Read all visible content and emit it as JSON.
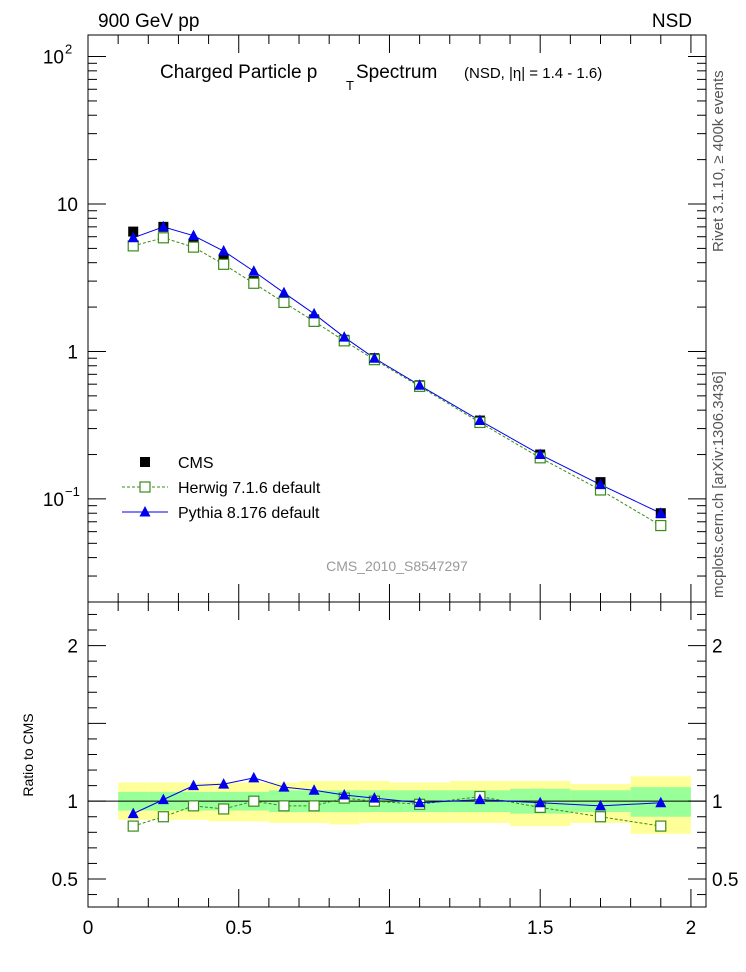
{
  "header": {
    "left_label": "900 GeV pp",
    "right_label": "NSD"
  },
  "side_labels": {
    "rivet": "Rivet 3.1.10, ≥ 400k events",
    "mcplots": "mcplots.cern.ch [arXiv:1306.3436]"
  },
  "colors": {
    "cms": "#000000",
    "herwig": "#3a8a1a",
    "pythia": "#0000ee",
    "band_outer": "#ffff99",
    "band_inner": "#99ff99"
  },
  "chart_data": [
    {
      "type": "line",
      "scale": "log",
      "title_main": "Charged Particle p",
      "title_sub": "T",
      "title_rest": " Spectrum",
      "title_note": "(NSD, |η| = 1.4 - 1.6)",
      "watermark": "CMS_2010_S8547297",
      "xlim": [
        0,
        2.05
      ],
      "ylim": [
        0.02,
        140
      ],
      "y_ticks": [
        {
          "value": 100,
          "label": "10",
          "sup": "2"
        },
        {
          "value": 10,
          "label": "10",
          "sup": ""
        },
        {
          "value": 1,
          "label": "1",
          "sup": ""
        },
        {
          "value": 0.1,
          "label": "10",
          "sup": "−1"
        }
      ],
      "legend": [
        {
          "key": "cms",
          "label": "CMS"
        },
        {
          "key": "herwig",
          "label": "Herwig 7.1.6 default"
        },
        {
          "key": "pythia",
          "label": "Pythia 8.176 default"
        }
      ],
      "x": [
        0.15,
        0.25,
        0.35,
        0.45,
        0.55,
        0.65,
        0.75,
        0.85,
        0.95,
        1.1,
        1.3,
        1.5,
        1.7,
        1.9
      ],
      "series": [
        {
          "name": "CMS",
          "key": "cms",
          "values": [
            6.5,
            7.0,
            5.4,
            4.2,
            3.0,
            2.2,
            1.65,
            1.2,
            0.9,
            0.59,
            0.34,
            0.2,
            0.13,
            0.08
          ]
        },
        {
          "name": "Herwig 7.1.6 default",
          "key": "herwig",
          "values": [
            5.2,
            5.9,
            5.1,
            3.9,
            2.9,
            2.15,
            1.6,
            1.18,
            0.88,
            0.58,
            0.33,
            0.19,
            0.115,
            0.066
          ]
        },
        {
          "name": "Pythia 8.176 default",
          "key": "pythia",
          "values": [
            5.9,
            7.0,
            6.1,
            4.8,
            3.5,
            2.5,
            1.8,
            1.25,
            0.9,
            0.59,
            0.34,
            0.2,
            0.125,
            0.08
          ]
        }
      ]
    },
    {
      "type": "line",
      "scale": "linear",
      "ylabel": "Ratio to CMS",
      "xlim": [
        0,
        2.05
      ],
      "ylim": [
        0.32,
        2.28
      ],
      "x_ticks": [
        {
          "value": 0,
          "label": "0"
        },
        {
          "value": 0.5,
          "label": "0.5"
        },
        {
          "value": 1,
          "label": "1"
        },
        {
          "value": 1.5,
          "label": "1.5"
        },
        {
          "value": 2,
          "label": "2"
        }
      ],
      "y_ticks": [
        {
          "value": 2,
          "label": "2"
        },
        {
          "value": 1,
          "label": "1"
        },
        {
          "value": 0.5,
          "label": "0.5"
        }
      ],
      "bin_edges": [
        0.1,
        0.2,
        0.3,
        0.4,
        0.5,
        0.6,
        0.7,
        0.8,
        0.9,
        1.0,
        1.2,
        1.4,
        1.6,
        1.8,
        2.0
      ],
      "band_outer": [
        [
          0.88,
          1.12
        ],
        [
          0.88,
          1.12
        ],
        [
          0.88,
          1.12
        ],
        [
          0.87,
          1.12
        ],
        [
          0.87,
          1.12
        ],
        [
          0.86,
          1.12
        ],
        [
          0.86,
          1.13
        ],
        [
          0.85,
          1.13
        ],
        [
          0.86,
          1.13
        ],
        [
          0.86,
          1.12
        ],
        [
          0.86,
          1.13
        ],
        [
          0.84,
          1.13
        ],
        [
          0.86,
          1.11
        ],
        [
          0.79,
          1.16
        ]
      ],
      "band_inner": [
        [
          0.94,
          1.06
        ],
        [
          0.94,
          1.06
        ],
        [
          0.94,
          1.06
        ],
        [
          0.94,
          1.06
        ],
        [
          0.94,
          1.06
        ],
        [
          0.93,
          1.07
        ],
        [
          0.93,
          1.07
        ],
        [
          0.93,
          1.07
        ],
        [
          0.93,
          1.07
        ],
        [
          0.93,
          1.07
        ],
        [
          0.93,
          1.07
        ],
        [
          0.92,
          1.08
        ],
        [
          0.93,
          1.07
        ],
        [
          0.9,
          1.09
        ]
      ],
      "x": [
        0.15,
        0.25,
        0.35,
        0.45,
        0.55,
        0.65,
        0.75,
        0.85,
        0.95,
        1.1,
        1.3,
        1.5,
        1.7,
        1.9
      ],
      "series": [
        {
          "name": "Herwig 7.1.6 default",
          "key": "herwig",
          "values": [
            0.84,
            0.9,
            0.97,
            0.95,
            1.0,
            0.97,
            0.97,
            1.02,
            1.0,
            0.98,
            1.03,
            0.96,
            0.9,
            0.84
          ]
        },
        {
          "name": "Pythia 8.176 default",
          "key": "pythia",
          "values": [
            0.92,
            1.01,
            1.1,
            1.11,
            1.15,
            1.09,
            1.07,
            1.04,
            1.02,
            0.99,
            1.01,
            0.99,
            0.97,
            0.99
          ]
        }
      ]
    }
  ]
}
